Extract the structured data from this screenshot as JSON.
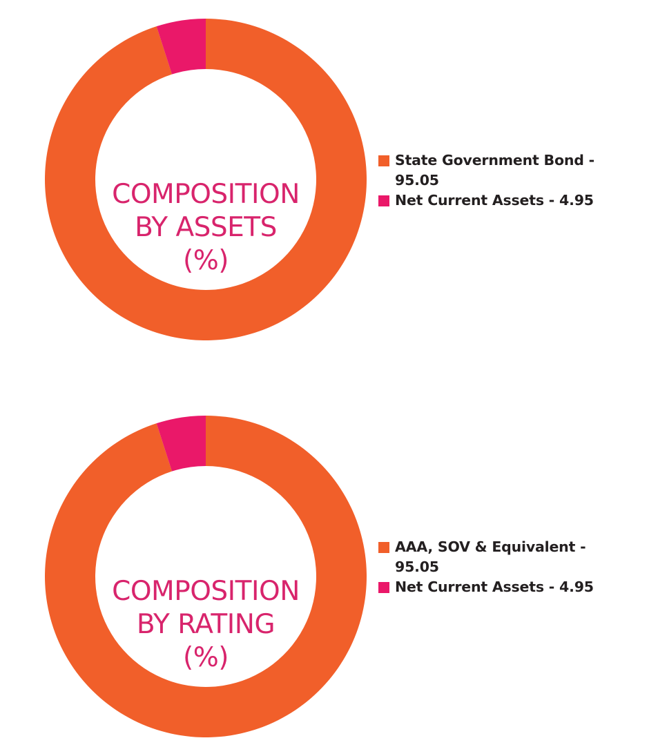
{
  "colors": {
    "orange": "#F15F2A",
    "magenta": "#EA1869",
    "title_pink": "#D8246C"
  },
  "chart_data": [
    {
      "type": "pie",
      "title_lines": [
        "COMPOSITION",
        "BY ASSETS",
        "(%)"
      ],
      "slices": [
        {
          "label": "State Government Bond - 95.05",
          "value": 95.05,
          "color": "#F15F2A"
        },
        {
          "label": "Net Current Assets - 4.95",
          "value": 4.95,
          "color": "#EA1869"
        }
      ],
      "legend_placement": "right"
    },
    {
      "type": "pie",
      "title_lines": [
        "COMPOSITION",
        "BY RATING",
        "(%)"
      ],
      "slices": [
        {
          "label": "AAA, SOV & Equivalent - 95.05",
          "label_lines": [
            "AAA, SOV & Equivalent -",
            "95.05"
          ],
          "value": 95.05,
          "color": "#F15F2A"
        },
        {
          "label": "Net Current Assets - 4.95",
          "value": 4.95,
          "color": "#EA1869"
        }
      ],
      "legend_placement": "right"
    }
  ]
}
